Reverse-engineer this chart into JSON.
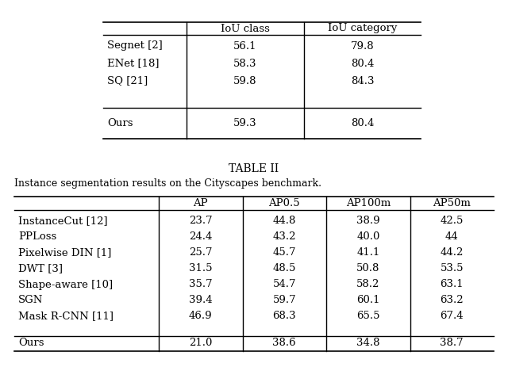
{
  "table1_headers": [
    "",
    "IoU class",
    "IoU category"
  ],
  "table1_rows": [
    [
      "Segnet [2]",
      "56.1",
      "79.8"
    ],
    [
      "ENet [18]",
      "58.3",
      "80.4"
    ],
    [
      "SQ [21]",
      "59.8",
      "84.3"
    ],
    [
      "Ours",
      "59.3",
      "80.4"
    ]
  ],
  "table1_ours_row": 3,
  "table2_title": "TABLE II",
  "table2_subtitle": "Instance segmentation results on the Cityscapes benchmark.",
  "table2_headers": [
    "",
    "AP",
    "AP0.5",
    "AP100m",
    "AP50m"
  ],
  "table2_rows": [
    [
      "InstanceCut [12]",
      "23.7",
      "44.8",
      "38.9",
      "42.5"
    ],
    [
      "PPLoss",
      "24.4",
      "43.2",
      "40.0",
      "44"
    ],
    [
      "Pixelwise DIN [1]",
      "25.7",
      "45.7",
      "41.1",
      "44.2"
    ],
    [
      "DWT [3]",
      "31.5",
      "48.5",
      "50.8",
      "53.5"
    ],
    [
      "Shape-aware [10]",
      "35.7",
      "54.7",
      "58.2",
      "63.1"
    ],
    [
      "SGN",
      "39.4",
      "59.7",
      "60.1",
      "63.2"
    ],
    [
      "Mask R-CNN [11]",
      "46.9",
      "68.3",
      "65.5",
      "67.4"
    ],
    [
      "Ours",
      "21.0",
      "38.6",
      "34.8",
      "38.7"
    ]
  ],
  "table2_ours_row": 7,
  "bg_color": "#ffffff",
  "text_color": "#000000"
}
